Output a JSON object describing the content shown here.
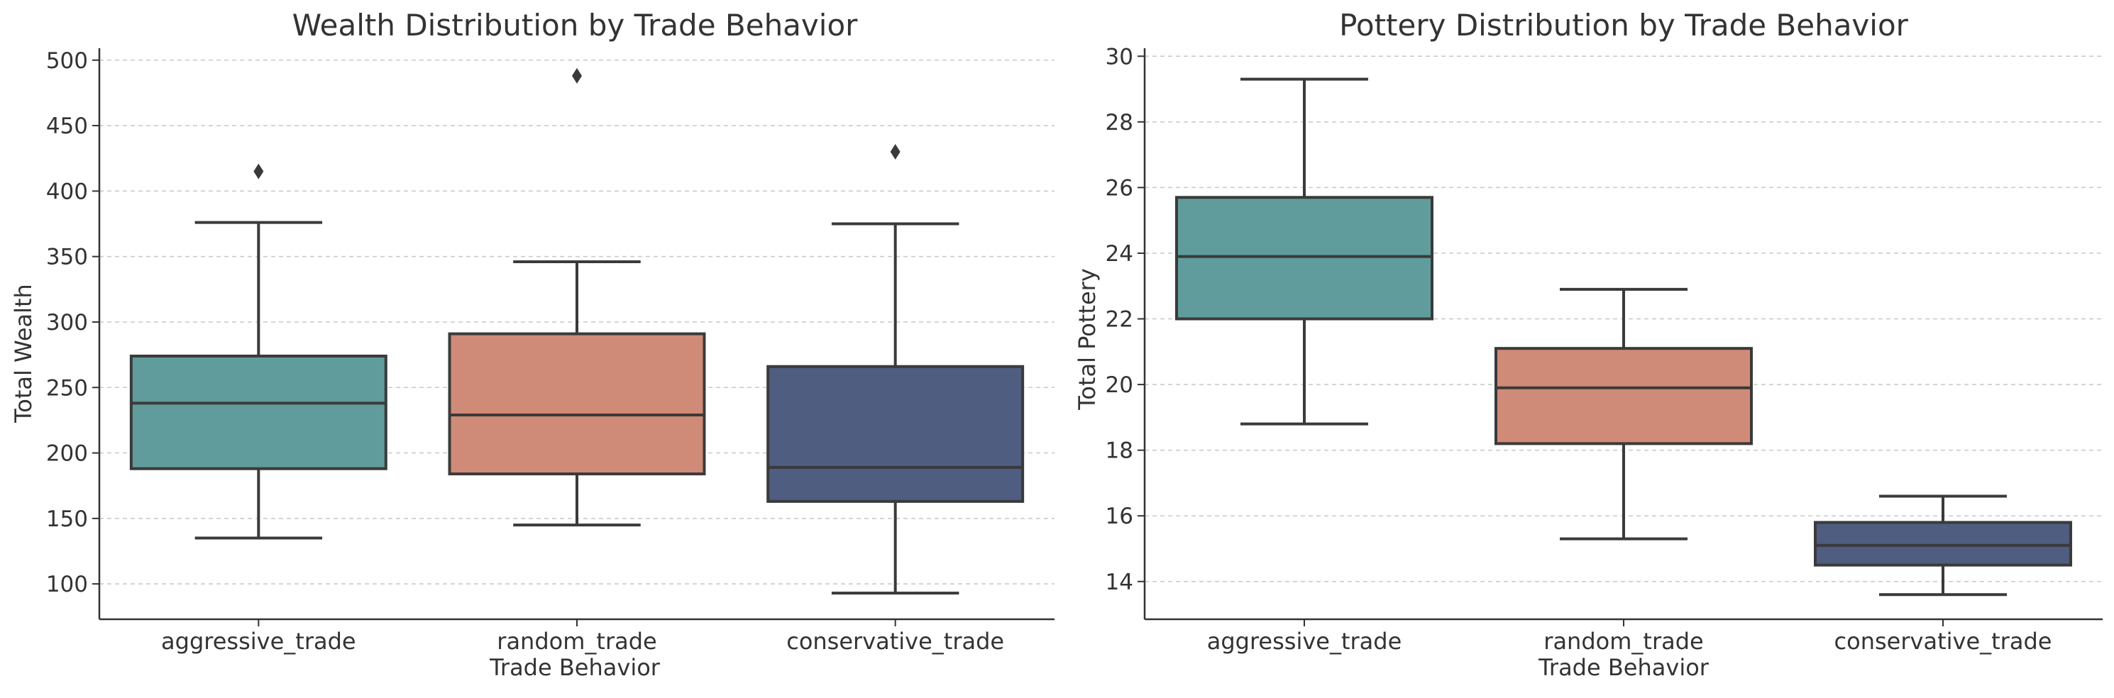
{
  "chart_data": [
    {
      "type": "box",
      "title": "Wealth Distribution by Trade Behavior",
      "xlabel": "Trade Behavior",
      "ylabel": "Total Wealth",
      "categories": [
        "aggressive_trade",
        "random_trade",
        "conservative_trade"
      ],
      "ylim": [
        73,
        508
      ],
      "yticks": [
        100,
        150,
        200,
        250,
        300,
        350,
        400,
        450,
        500
      ],
      "grid": "horizontal-dashed",
      "boxes": [
        {
          "category": "aggressive_trade",
          "whisker_low": 135,
          "q1": 188,
          "median": 238,
          "q3": 274,
          "whisker_high": 376,
          "outliers": [
            415
          ],
          "color": "#5f9c9b"
        },
        {
          "category": "random_trade",
          "whisker_low": 145,
          "q1": 184,
          "median": 229,
          "q3": 291,
          "whisker_high": 346,
          "outliers": [
            488
          ],
          "color": "#cf8b77"
        },
        {
          "category": "conservative_trade",
          "whisker_low": 93,
          "q1": 163,
          "median": 189,
          "q3": 266,
          "whisker_high": 375,
          "outliers": [
            430
          ],
          "color": "#4e5d80"
        }
      ]
    },
    {
      "type": "box",
      "title": "Pottery Distribution by Trade Behavior",
      "xlabel": "Trade Behavior",
      "ylabel": "Total Pottery",
      "categories": [
        "aggressive_trade",
        "random_trade",
        "conservative_trade"
      ],
      "ylim": [
        12.85,
        30.2
      ],
      "yticks": [
        14,
        16,
        18,
        20,
        22,
        24,
        26,
        28,
        30
      ],
      "grid": "horizontal-dashed",
      "boxes": [
        {
          "category": "aggressive_trade",
          "whisker_low": 18.8,
          "q1": 22.0,
          "median": 23.9,
          "q3": 25.7,
          "whisker_high": 29.3,
          "outliers": [],
          "color": "#5f9c9b"
        },
        {
          "category": "random_trade",
          "whisker_low": 15.3,
          "q1": 18.2,
          "median": 19.9,
          "q3": 21.1,
          "whisker_high": 22.9,
          "outliers": [],
          "color": "#cf8b77"
        },
        {
          "category": "conservative_trade",
          "whisker_low": 13.6,
          "q1": 14.5,
          "median": 15.1,
          "q3": 15.8,
          "whisker_high": 16.6,
          "outliers": [],
          "color": "#4e5d80"
        }
      ]
    }
  ]
}
